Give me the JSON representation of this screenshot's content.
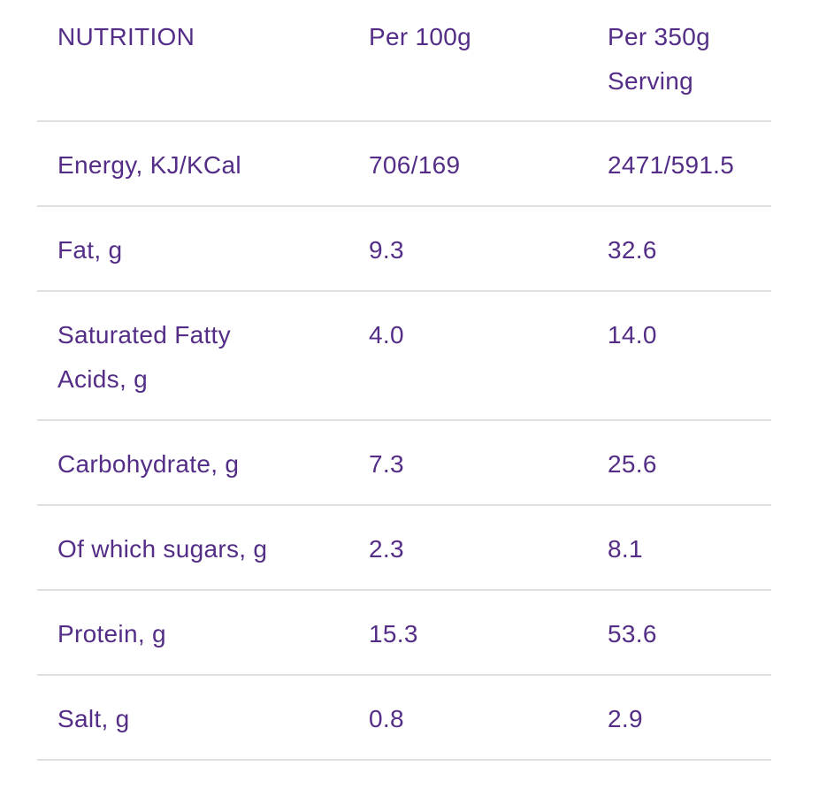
{
  "colors": {
    "text_purple": "#542d87",
    "divider_gray": "#e0e0e0",
    "background": "#ffffff"
  },
  "table": {
    "headers": {
      "nutrient": "NUTRITION",
      "per_100g": "Per 100g",
      "per_serving": "Per 350g\nServing"
    },
    "rows": [
      {
        "label": "Energy, KJ/KCal",
        "per_100g": "706/169",
        "per_serving": "2471/591.5"
      },
      {
        "label": "Fat, g",
        "per_100g": "9.3",
        "per_serving": "32.6"
      },
      {
        "label": "Saturated Fatty\nAcids, g",
        "per_100g": "4.0",
        "per_serving": "14.0"
      },
      {
        "label": "Carbohydrate, g",
        "per_100g": "7.3",
        "per_serving": "25.6"
      },
      {
        "label": "Of which sugars, g",
        "per_100g": "2.3",
        "per_serving": "8.1"
      },
      {
        "label": "Protein, g",
        "per_100g": "15.3",
        "per_serving": "53.6"
      },
      {
        "label": "Salt, g",
        "per_100g": "0.8",
        "per_serving": "2.9"
      }
    ]
  }
}
